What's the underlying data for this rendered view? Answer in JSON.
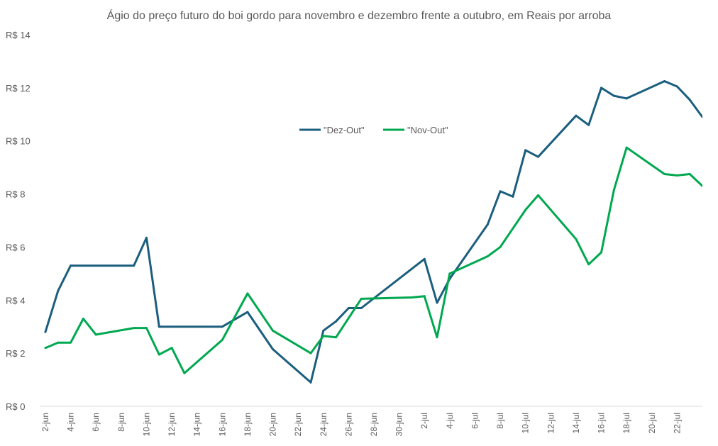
{
  "chart_data": {
    "type": "line",
    "title": "Ágio do preço futuro do boi gordo para novembro e dezembro frente a outubro, em Reais por arroba",
    "xlabel": "",
    "ylabel": "",
    "ylim": [
      0,
      14
    ],
    "y_ticks": [
      0,
      2,
      4,
      6,
      8,
      10,
      12,
      14
    ],
    "y_tick_labels": [
      "R$ 0",
      "R$ 2",
      "R$ 4",
      "R$ 6",
      "R$ 8",
      "R$ 10",
      "R$ 12",
      "R$ 14"
    ],
    "xlim": [
      2,
      54
    ],
    "x_ticks": [
      2,
      4,
      6,
      8,
      10,
      12,
      14,
      16,
      18,
      20,
      22,
      24,
      26,
      28,
      30,
      32,
      34,
      36,
      38,
      40,
      42,
      44,
      46,
      48,
      50,
      52
    ],
    "x_tick_labels": [
      "2-jun",
      "4-jun",
      "6-jun",
      "8-jun",
      "10-jun",
      "12-jun",
      "14-jun",
      "16-jun",
      "18-jun",
      "20-jun",
      "22-jun",
      "24-jun",
      "26-jun",
      "28-jun",
      "30-jun",
      "2-jul",
      "4-jul",
      "6-jul",
      "8-jul",
      "10-jul",
      "12-jul",
      "14-jul",
      "16-jul",
      "18-jul",
      "20-jul",
      "22-jul"
    ],
    "grid": false,
    "legend_position": "center",
    "series": [
      {
        "name": "\"Dez-Out\"",
        "color": "#1B5E7E",
        "x": [
          2,
          3,
          4,
          9,
          10,
          11,
          16,
          18,
          20,
          23,
          24,
          25,
          26,
          27,
          32,
          33,
          34,
          37,
          38,
          39,
          40,
          41,
          44,
          45,
          46,
          47,
          48,
          51,
          52,
          53,
          54
        ],
        "values": [
          2.8,
          4.35,
          5.3,
          5.3,
          6.35,
          3.0,
          3.0,
          3.55,
          2.15,
          0.9,
          2.85,
          3.2,
          3.7,
          3.7,
          5.55,
          3.9,
          4.8,
          6.85,
          8.1,
          7.9,
          9.65,
          9.4,
          10.95,
          10.6,
          12.0,
          11.7,
          11.6,
          12.25,
          12.05,
          11.55,
          10.9
        ]
      },
      {
        "name": "\"Nov-Out\"",
        "color": "#00A84F",
        "x": [
          2,
          3,
          4,
          5,
          6,
          9,
          10,
          11,
          12,
          13,
          16,
          18,
          20,
          23,
          24,
          25,
          27,
          31,
          32,
          33,
          34,
          37,
          38,
          39,
          40,
          41,
          44,
          45,
          46,
          47,
          48,
          51,
          52,
          53,
          54
        ],
        "values": [
          2.2,
          2.4,
          2.4,
          3.3,
          2.7,
          2.95,
          2.95,
          1.95,
          2.2,
          1.25,
          2.5,
          4.25,
          2.85,
          2.0,
          2.65,
          2.6,
          4.05,
          4.1,
          4.15,
          2.6,
          5.0,
          5.65,
          6.0,
          6.7,
          7.4,
          7.95,
          6.3,
          5.35,
          5.8,
          8.15,
          9.75,
          8.75,
          8.7,
          8.75,
          8.3
        ]
      }
    ]
  }
}
